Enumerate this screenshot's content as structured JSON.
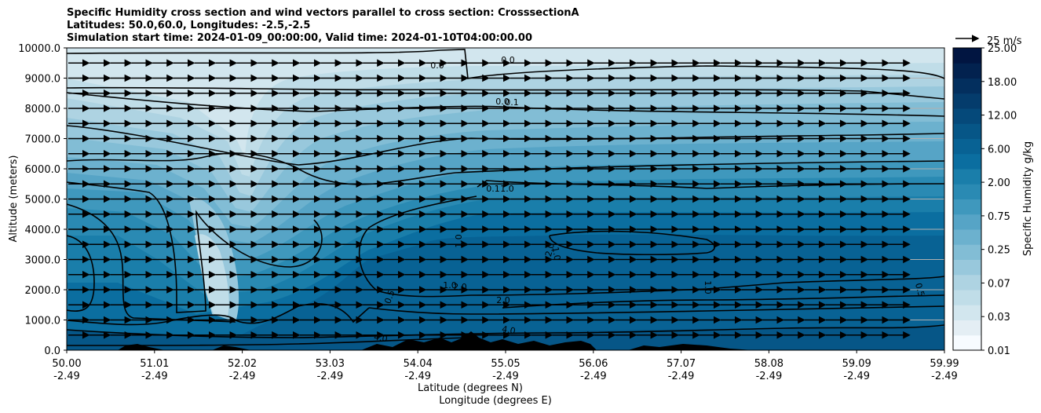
{
  "titles": {
    "line1": "Specific Humidity cross section and wind vectors parallel to cross section: CrosssectionA",
    "line2": "Latitudes: 50.0,60.0, Longitudes: -2.5,-2.5",
    "line3": "Simulation start time: 2024-01-09_00:00:00, Valid time: 2024-01-10T04:00:00.00"
  },
  "chart_data": {
    "type": "heatmap",
    "title": "Specific Humidity cross section and wind vectors parallel to cross section: CrosssectionA",
    "ylabel": "Altitude (meters)",
    "xlabel_lat": "Latitude (degrees N)",
    "xlabel_lon": "Longitude (degrees E)",
    "ylim": [
      0,
      10000
    ],
    "y_ticks": [
      "0.0",
      "1000.0",
      "2000.0",
      "3000.0",
      "4000.0",
      "5000.0",
      "6000.0",
      "7000.0",
      "8000.0",
      "9000.0",
      "10000.0"
    ],
    "x_ticks": [
      {
        "lat": "50.00",
        "lon": "-2.49"
      },
      {
        "lat": "51.01",
        "lon": "-2.49"
      },
      {
        "lat": "52.02",
        "lon": "-2.49"
      },
      {
        "lat": "53.03",
        "lon": "-2.49"
      },
      {
        "lat": "54.04",
        "lon": "-2.49"
      },
      {
        "lat": "55.05",
        "lon": "-2.49"
      },
      {
        "lat": "56.06",
        "lon": "-2.49"
      },
      {
        "lat": "57.07",
        "lon": "-2.49"
      },
      {
        "lat": "58.08",
        "lon": "-2.49"
      },
      {
        "lat": "59.09",
        "lon": "-2.49"
      },
      {
        "lat": "59.99",
        "lon": "-2.49"
      }
    ],
    "colorbar": {
      "label": "Specific Humidity g/kg",
      "ticks": [
        "0.01",
        "0.03",
        "0.07",
        "0.25",
        "0.75",
        "2.00",
        "6.00",
        "12.00",
        "18.00",
        "25.00"
      ],
      "colors": [
        "#f7fbff",
        "#e4eef4",
        "#d2e6ee",
        "#c0dde8",
        "#aed3e2",
        "#98c8dc",
        "#82bdd5",
        "#6cb1ce",
        "#56a4c6",
        "#3f98bd",
        "#2a8ab3",
        "#1a7eaa",
        "#0b6ea0",
        "#086294",
        "#065687",
        "#05497a",
        "#043c6c",
        "#032f5e",
        "#02224f",
        "#011541"
      ],
      "grid": true
    },
    "contour_labels": [
      "0.0",
      "0.0",
      "0.0",
      "0.1",
      "0.1",
      "1.0",
      "1.0",
      "2.0",
      "2.0",
      "0.5",
      "1.0",
      "2.0",
      "4.0",
      "4.0",
      "1.0",
      "0.5",
      "1.0"
    ],
    "wind_reference": {
      "label": "25 m/s",
      "value": 25
    },
    "wind_vectors": {
      "direction": "parallel to cross section, toward increasing latitude",
      "columns": 40,
      "rows": 19,
      "approx_speed_ms": 20
    }
  }
}
